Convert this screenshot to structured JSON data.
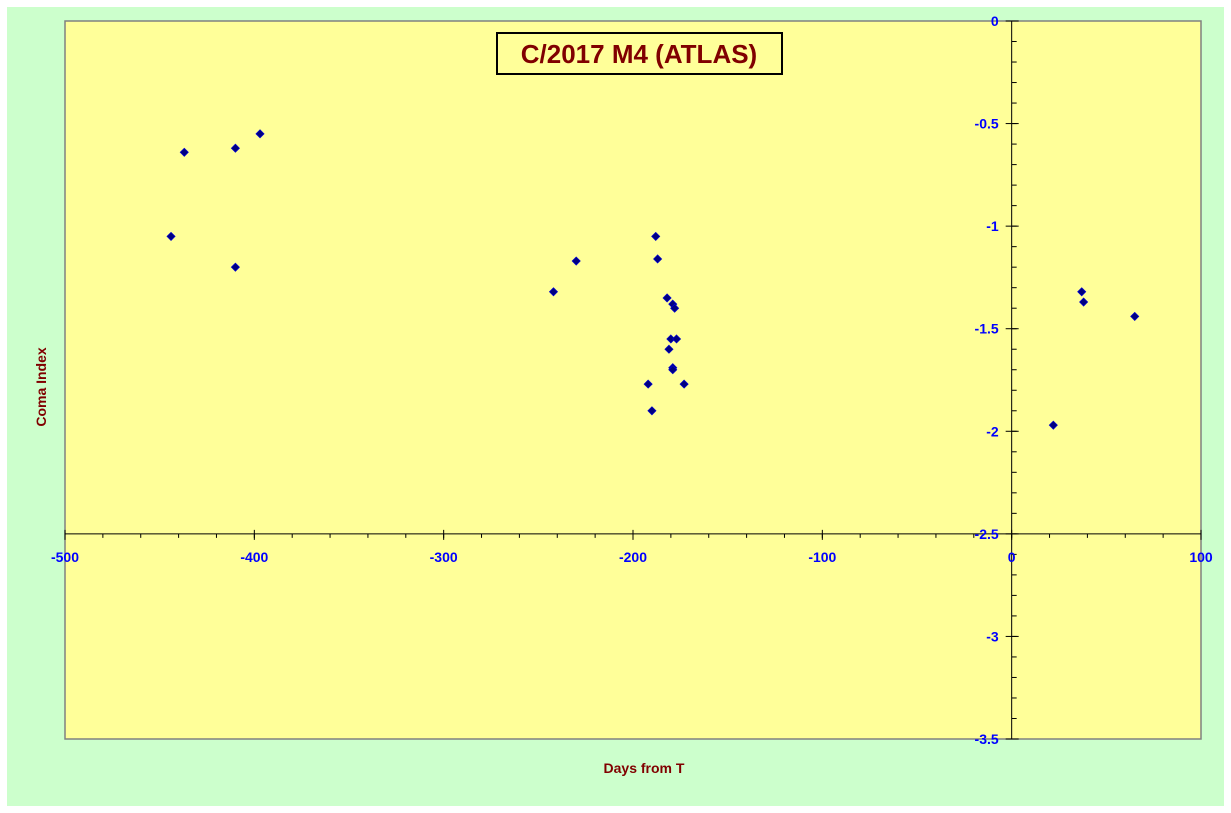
{
  "colors": {
    "outer_background": "#ccffcc",
    "plot_background": "#ffff99",
    "plot_border": "#808080",
    "axis_line": "#000000",
    "tick_label": "#0000ff",
    "axis_title": "#800000",
    "title_text": "#800000",
    "title_box_background": "#ffff99",
    "title_box_border": "#000000",
    "marker_fill": "#000080",
    "marker_stroke": "#0000cc"
  },
  "chart_data": {
    "type": "scatter",
    "title": "C/2017 M4 (ATLAS)",
    "xlabel": "Days from  T",
    "ylabel": "Coma Index",
    "xlim": [
      -500,
      100
    ],
    "ylim": [
      -3.5,
      0
    ],
    "x_ticks": [
      -500,
      -400,
      -300,
      -200,
      -100,
      0,
      100
    ],
    "x_tick_labels": [
      "-500",
      "-400",
      "-300",
      "-200",
      "-100",
      "0",
      "100"
    ],
    "y_ticks": [
      0,
      -0.5,
      -1,
      -1.5,
      -2,
      -2.5,
      -3,
      -3.5
    ],
    "y_tick_labels": [
      "0",
      "-0.5",
      "-1",
      "-1.5",
      "-2",
      "-2.5",
      "-3",
      "-3.5"
    ],
    "x_axis_crosses_y": -2.5,
    "y_axis_crosses_x": 0,
    "marker": "diamond",
    "grid": false,
    "legend": "none",
    "points": [
      {
        "x": -444,
        "y": -1.05
      },
      {
        "x": -437,
        "y": -0.64
      },
      {
        "x": -410,
        "y": -0.62
      },
      {
        "x": -410,
        "y": -1.2
      },
      {
        "x": -397,
        "y": -0.55
      },
      {
        "x": -242,
        "y": -1.32
      },
      {
        "x": -230,
        "y": -1.17
      },
      {
        "x": -188,
        "y": -1.05
      },
      {
        "x": -187,
        "y": -1.16
      },
      {
        "x": -182,
        "y": -1.35
      },
      {
        "x": -179,
        "y": -1.38
      },
      {
        "x": -178,
        "y": -1.4
      },
      {
        "x": -180,
        "y": -1.55
      },
      {
        "x": -177,
        "y": -1.55
      },
      {
        "x": -181,
        "y": -1.6
      },
      {
        "x": -179,
        "y": -1.69
      },
      {
        "x": -179,
        "y": -1.7
      },
      {
        "x": -192,
        "y": -1.77
      },
      {
        "x": -173,
        "y": -1.77
      },
      {
        "x": -190,
        "y": -1.9
      },
      {
        "x": 22,
        "y": -1.97
      },
      {
        "x": 37,
        "y": -1.32
      },
      {
        "x": 38,
        "y": -1.37
      },
      {
        "x": 65,
        "y": -1.44
      }
    ]
  }
}
